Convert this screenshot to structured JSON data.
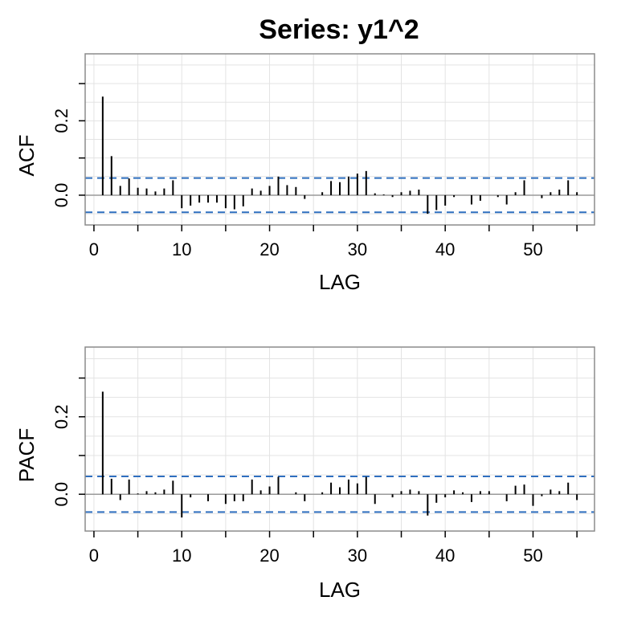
{
  "chart_data": {
    "title": "Series:  y1^2",
    "lag_axis": {
      "label": "LAG",
      "ticks": [
        0,
        10,
        20,
        30,
        40,
        50
      ],
      "range": [
        -1,
        57
      ]
    },
    "confidence_bound": 0.046,
    "grid": true,
    "panels": [
      {
        "type": "bar",
        "ylabel": "ACF",
        "ylim": [
          -0.08,
          0.38
        ],
        "yticks": [
          0.0,
          0.2
        ],
        "ylabel_ticks": [
          "0.0",
          "0.2"
        ],
        "lags": [
          1,
          2,
          3,
          4,
          5,
          6,
          7,
          8,
          9,
          10,
          11,
          12,
          13,
          14,
          15,
          16,
          17,
          18,
          19,
          20,
          21,
          22,
          23,
          24,
          25,
          26,
          27,
          28,
          29,
          30,
          31,
          32,
          33,
          34,
          35,
          36,
          37,
          38,
          39,
          40,
          41,
          42,
          43,
          44,
          45,
          46,
          47,
          48,
          49,
          50,
          51,
          52,
          53,
          54,
          55
        ],
        "values": [
          0.265,
          0.105,
          0.025,
          0.045,
          0.02,
          0.018,
          0.01,
          0.018,
          0.04,
          -0.035,
          -0.028,
          -0.02,
          -0.02,
          -0.02,
          -0.035,
          -0.038,
          -0.03,
          0.018,
          0.012,
          0.025,
          0.05,
          0.027,
          0.022,
          -0.01,
          0.0,
          0.008,
          0.038,
          0.035,
          0.05,
          0.058,
          0.065,
          0.005,
          0.002,
          -0.005,
          0.008,
          0.012,
          0.015,
          -0.05,
          -0.04,
          -0.028,
          -0.005,
          0.0,
          -0.025,
          -0.015,
          0.0,
          -0.005,
          -0.025,
          0.008,
          0.04,
          0.0,
          -0.008,
          0.008,
          0.015,
          0.04,
          0.008
        ]
      },
      {
        "type": "bar",
        "ylabel": "PACF",
        "ylim": [
          -0.095,
          0.38
        ],
        "yticks": [
          0.0,
          0.2
        ],
        "ylabel_ticks": [
          "0.0",
          "0.2"
        ],
        "lags": [
          1,
          2,
          3,
          4,
          5,
          6,
          7,
          8,
          9,
          10,
          11,
          12,
          13,
          14,
          15,
          16,
          17,
          18,
          19,
          20,
          21,
          22,
          23,
          24,
          25,
          26,
          27,
          28,
          29,
          30,
          31,
          32,
          33,
          34,
          35,
          36,
          37,
          38,
          39,
          40,
          41,
          42,
          43,
          44,
          45,
          46,
          47,
          48,
          49,
          50,
          51,
          52,
          53,
          54,
          55
        ],
        "values": [
          0.265,
          0.04,
          -0.015,
          0.038,
          0.002,
          0.008,
          0.005,
          0.012,
          0.035,
          -0.06,
          -0.008,
          0.0,
          -0.018,
          0.0,
          -0.025,
          -0.018,
          -0.018,
          0.038,
          0.01,
          0.02,
          0.045,
          0.0,
          0.005,
          -0.018,
          0.0,
          0.005,
          0.03,
          0.018,
          0.038,
          0.028,
          0.045,
          -0.025,
          0.0,
          -0.008,
          0.008,
          0.012,
          0.008,
          -0.055,
          -0.022,
          -0.008,
          0.01,
          0.005,
          -0.02,
          0.008,
          0.008,
          0.0,
          -0.018,
          0.022,
          0.025,
          -0.03,
          -0.005,
          0.012,
          0.008,
          0.03,
          -0.015
        ]
      }
    ]
  }
}
